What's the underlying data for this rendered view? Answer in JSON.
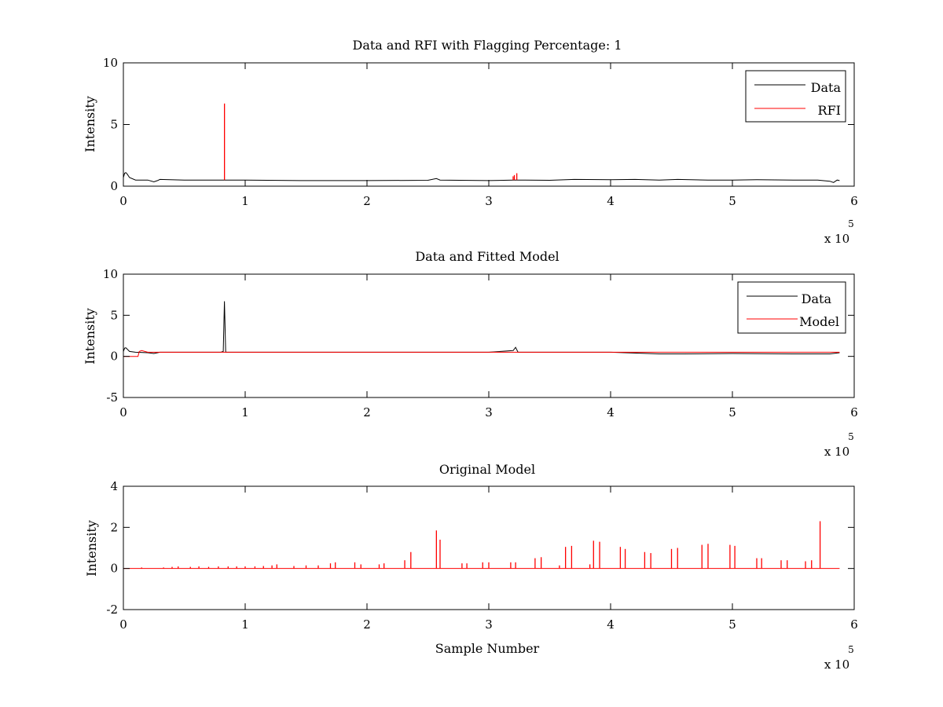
{
  "chart_data": [
    {
      "type": "line",
      "title": "Data and RFI with Flagging Percentage: 1",
      "xlabel": "",
      "ylabel": "Intensity",
      "xlim": [
        0,
        6
      ],
      "ylim": [
        0,
        10
      ],
      "xticks": [
        "0",
        "1",
        "2",
        "3",
        "4",
        "5",
        "6"
      ],
      "yticks": [
        "0",
        "5",
        "10"
      ],
      "x_multiplier": "x 10",
      "x_multiplier_exp": "5",
      "legend": "top-right",
      "grid": false,
      "series": [
        {
          "name": "Data",
          "color": "#000000",
          "x": [
            0,
            0.01,
            0.02,
            0.03,
            0.05,
            0.1,
            0.2,
            0.25,
            0.28,
            0.3,
            0.5,
            0.8,
            1.0,
            1.5,
            2.0,
            2.5,
            2.57,
            2.6,
            3.0,
            3.2,
            3.3,
            3.5,
            3.7,
            4.0,
            4.2,
            4.4,
            4.55,
            4.8,
            5.0,
            5.2,
            5.5,
            5.7,
            5.8,
            5.83,
            5.86,
            5.88
          ],
          "y": [
            0.7,
            1.05,
            1.1,
            1.0,
            0.7,
            0.5,
            0.5,
            0.35,
            0.45,
            0.55,
            0.5,
            0.5,
            0.5,
            0.45,
            0.45,
            0.48,
            0.62,
            0.5,
            0.45,
            0.5,
            0.5,
            0.48,
            0.55,
            0.52,
            0.55,
            0.5,
            0.55,
            0.5,
            0.5,
            0.52,
            0.5,
            0.5,
            0.4,
            0.3,
            0.5,
            0.45
          ]
        },
        {
          "name": "RFI",
          "color": "#ff0000",
          "spikes": [
            {
              "x": 0.83,
              "y": 6.7
            },
            {
              "x": 3.2,
              "y": 0.8
            },
            {
              "x": 3.23,
              "y": 1.05
            },
            {
              "x": 3.21,
              "y": 0.9
            }
          ]
        }
      ]
    },
    {
      "type": "line",
      "title": "Data and Fitted Model",
      "xlabel": "",
      "ylabel": "Intensity",
      "xlim": [
        0,
        6
      ],
      "ylim": [
        -5,
        10
      ],
      "xticks": [
        "0",
        "1",
        "2",
        "3",
        "4",
        "5",
        "6"
      ],
      "yticks": [
        "-5",
        "0",
        "5",
        "10"
      ],
      "x_multiplier": "x 10",
      "x_multiplier_exp": "5",
      "legend": "top-right",
      "grid": false,
      "series": [
        {
          "name": "Data",
          "color": "#000000",
          "x": [
            0,
            0.01,
            0.02,
            0.03,
            0.05,
            0.1,
            0.2,
            0.25,
            0.3,
            0.5,
            0.8,
            0.82,
            0.83,
            0.84,
            1.0,
            2.0,
            3.0,
            3.2,
            3.22,
            3.24,
            3.5,
            4.0,
            4.4,
            4.6,
            5.0,
            5.5,
            5.8,
            5.88
          ],
          "y": [
            0.6,
            1.0,
            1.05,
            0.9,
            0.6,
            0.5,
            0.45,
            0.35,
            0.5,
            0.5,
            0.5,
            0.6,
            6.7,
            0.5,
            0.5,
            0.5,
            0.5,
            0.7,
            1.1,
            0.5,
            0.5,
            0.5,
            0.3,
            0.3,
            0.35,
            0.3,
            0.3,
            0.45
          ]
        },
        {
          "name": "Model",
          "color": "#ff0000",
          "x": [
            0,
            0.12,
            0.13,
            0.15,
            0.2,
            0.3,
            1.0,
            2.0,
            3.0,
            4.0,
            5.0,
            5.88
          ],
          "y": [
            0,
            0,
            0.6,
            0.7,
            0.5,
            0.5,
            0.5,
            0.5,
            0.5,
            0.5,
            0.5,
            0.5
          ]
        }
      ]
    },
    {
      "type": "line",
      "title": "Original Model",
      "xlabel": "Sample Number",
      "ylabel": "Intensity",
      "xlim": [
        0,
        6
      ],
      "ylim": [
        -2,
        4
      ],
      "xticks": [
        "0",
        "1",
        "2",
        "3",
        "4",
        "5",
        "6"
      ],
      "yticks": [
        "-2",
        "0",
        "2",
        "4"
      ],
      "x_multiplier": "x 10",
      "x_multiplier_exp": "5",
      "legend": "none",
      "grid": false,
      "series": [
        {
          "color": "#ff0000",
          "baseline": 0,
          "x_end": 5.88,
          "spikes": [
            {
              "x": 0.15,
              "y": 0.05
            },
            {
              "x": 0.33,
              "y": 0.05
            },
            {
              "x": 0.4,
              "y": 0.08
            },
            {
              "x": 0.45,
              "y": 0.1
            },
            {
              "x": 0.55,
              "y": 0.08
            },
            {
              "x": 0.62,
              "y": 0.1
            },
            {
              "x": 0.7,
              "y": 0.08
            },
            {
              "x": 0.78,
              "y": 0.1
            },
            {
              "x": 0.86,
              "y": 0.1
            },
            {
              "x": 0.93,
              "y": 0.1
            },
            {
              "x": 1.0,
              "y": 0.1
            },
            {
              "x": 1.08,
              "y": 0.1
            },
            {
              "x": 1.15,
              "y": 0.12
            },
            {
              "x": 1.22,
              "y": 0.15
            },
            {
              "x": 1.26,
              "y": 0.2
            },
            {
              "x": 1.4,
              "y": 0.12
            },
            {
              "x": 1.5,
              "y": 0.15
            },
            {
              "x": 1.6,
              "y": 0.15
            },
            {
              "x": 1.7,
              "y": 0.25
            },
            {
              "x": 1.74,
              "y": 0.3
            },
            {
              "x": 1.9,
              "y": 0.3
            },
            {
              "x": 1.95,
              "y": 0.2
            },
            {
              "x": 2.1,
              "y": 0.2
            },
            {
              "x": 2.14,
              "y": 0.25
            },
            {
              "x": 2.31,
              "y": 0.4
            },
            {
              "x": 2.36,
              "y": 0.8
            },
            {
              "x": 2.57,
              "y": 1.85
            },
            {
              "x": 2.6,
              "y": 1.4
            },
            {
              "x": 2.78,
              "y": 0.25
            },
            {
              "x": 2.82,
              "y": 0.25
            },
            {
              "x": 2.95,
              "y": 0.3
            },
            {
              "x": 3.0,
              "y": 0.3
            },
            {
              "x": 3.18,
              "y": 0.3
            },
            {
              "x": 3.22,
              "y": 0.3
            },
            {
              "x": 3.38,
              "y": 0.5
            },
            {
              "x": 3.43,
              "y": 0.55
            },
            {
              "x": 3.58,
              "y": 0.15
            },
            {
              "x": 3.63,
              "y": 1.05
            },
            {
              "x": 3.68,
              "y": 1.1
            },
            {
              "x": 3.83,
              "y": 0.2
            },
            {
              "x": 3.86,
              "y": 1.35
            },
            {
              "x": 3.91,
              "y": 1.3
            },
            {
              "x": 4.08,
              "y": 1.05
            },
            {
              "x": 4.12,
              "y": 0.95
            },
            {
              "x": 4.28,
              "y": 0.8
            },
            {
              "x": 4.33,
              "y": 0.75
            },
            {
              "x": 4.5,
              "y": 0.95
            },
            {
              "x": 4.55,
              "y": 1.0
            },
            {
              "x": 4.75,
              "y": 1.15
            },
            {
              "x": 4.8,
              "y": 1.2
            },
            {
              "x": 4.98,
              "y": 1.15
            },
            {
              "x": 5.02,
              "y": 1.1
            },
            {
              "x": 5.2,
              "y": 0.5
            },
            {
              "x": 5.24,
              "y": 0.5
            },
            {
              "x": 5.4,
              "y": 0.4
            },
            {
              "x": 5.45,
              "y": 0.4
            },
            {
              "x": 5.6,
              "y": 0.35
            },
            {
              "x": 5.65,
              "y": 0.4
            },
            {
              "x": 5.72,
              "y": 2.3
            }
          ]
        }
      ]
    }
  ]
}
